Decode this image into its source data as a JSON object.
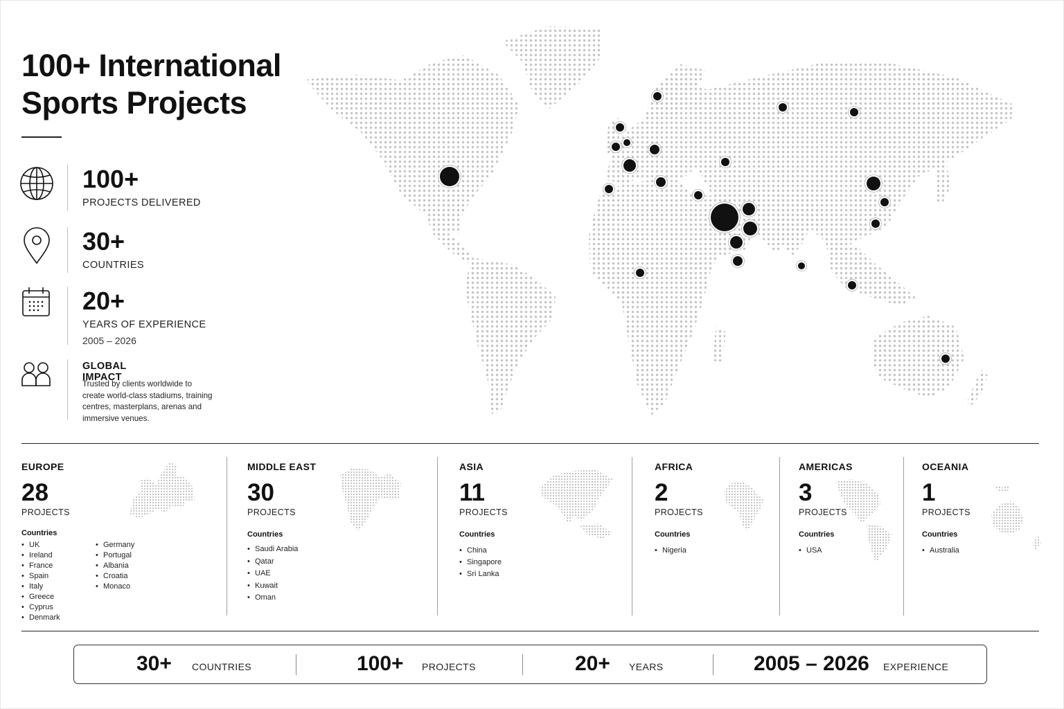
{
  "title": {
    "line1": "100+ International",
    "line2": "Sports Projects"
  },
  "stats": [
    {
      "icon": "globe-icon",
      "value": "100+",
      "label": "PROJECTS DELIVERED"
    },
    {
      "icon": "map-pin-icon",
      "value": "30+",
      "label": "COUNTRIES"
    },
    {
      "icon": "calendar-icon",
      "value": "20+",
      "label": "YEARS OF EXPERIENCE",
      "sublabel": "2005 – 2026"
    }
  ],
  "impact": {
    "icon": "people-icon",
    "heading": "GLOBAL IMPACT",
    "text": "Trusted by clients worldwide to create world-class stadiums, training centres, masterplans, arenas and immersive venues."
  },
  "regions": [
    {
      "name": "EUROPE",
      "count": "28",
      "unit": "PROJECTS",
      "countries_heading": "Countries",
      "countries": [
        "UK",
        "Ireland",
        "France",
        "Spain",
        "Italy",
        "Greece",
        "Cyprus",
        "Denmark",
        "Germany",
        "Portugal",
        "Albania",
        "Croatia",
        "Monaco"
      ]
    },
    {
      "name": "MIDDLE EAST",
      "count": "30",
      "unit": "PROJECTS",
      "countries_heading": "Countries",
      "countries": [
        "Saudi Arabia",
        "Qatar",
        "UAE",
        "Kuwait",
        "Oman"
      ]
    },
    {
      "name": "ASIA",
      "count": "11",
      "unit": "PROJECTS",
      "countries_heading": "Countries",
      "countries": [
        "China",
        "Singapore",
        "Sri Lanka"
      ]
    },
    {
      "name": "AFRICA",
      "count": "2",
      "unit": "PROJECTS",
      "countries_heading": "Countries",
      "countries": [
        "Nigeria"
      ]
    },
    {
      "name": "AMERICAS",
      "count": "3",
      "unit": "PROJECTS",
      "countries_heading": "Countries",
      "countries": [
        "USA"
      ]
    },
    {
      "name": "OCEANIA",
      "count": "1",
      "unit": "PROJECTS",
      "countries_heading": "Countries",
      "countries": [
        "Australia"
      ]
    }
  ],
  "footer": [
    {
      "value": "30+",
      "label": "COUNTRIES"
    },
    {
      "value": "100+",
      "label": "PROJECTS"
    },
    {
      "value": "20+",
      "label": "YEARS"
    },
    {
      "value": "2005 – 2026",
      "label": "EXPERIENCE"
    }
  ],
  "colors": {
    "text": "#111111",
    "map_dots": "#c4c4c4",
    "markers": "#111111",
    "rules": "#222222"
  }
}
